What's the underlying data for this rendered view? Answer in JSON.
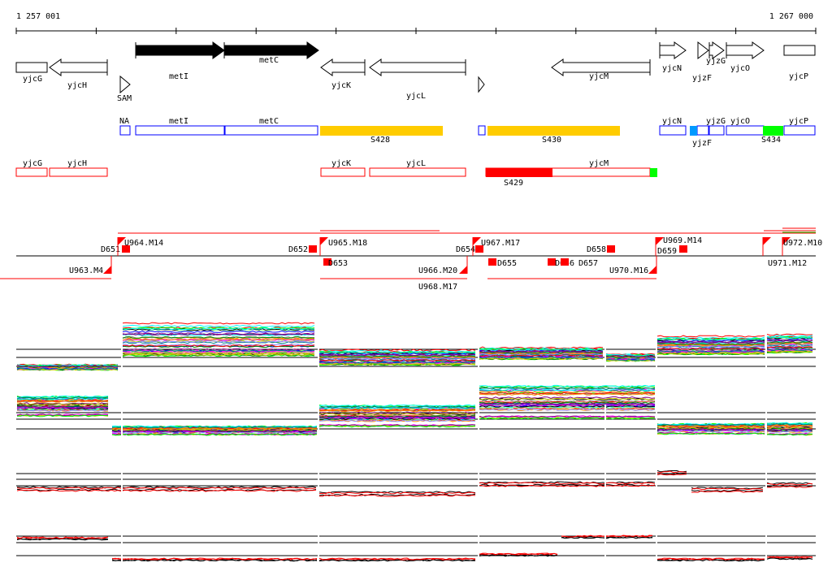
{
  "axis": {
    "start": "1 257 001",
    "end": "1 267 000"
  },
  "genes": [
    {
      "label": "yjcG",
      "strand": "box"
    },
    {
      "label": "yjcH",
      "strand": "-"
    },
    {
      "label": "metI",
      "strand": "+",
      "filled": true
    },
    {
      "label": "metC",
      "strand": "+",
      "filled": true
    },
    {
      "label": "SAM",
      "strand": "+"
    },
    {
      "label": "yjcK",
      "strand": "-"
    },
    {
      "label": "yjcL",
      "strand": "-"
    },
    {
      "label": "yjcM",
      "strand": "-"
    },
    {
      "label": "yjcN",
      "strand": "+"
    },
    {
      "label": "yjzF",
      "strand": "+"
    },
    {
      "label": "yjzG",
      "strand": "+"
    },
    {
      "label": "yjcO",
      "strand": "+"
    },
    {
      "label": "yjcP",
      "strand": "box"
    }
  ],
  "operons_plus": {
    "labels": [
      "NA",
      "metI",
      "metC",
      "S428",
      "S430",
      "yjcN",
      "yjzF",
      "yjzG",
      "yjcO",
      "yjcP",
      "S434"
    ],
    "colors": {
      "outline": "#0000ff",
      "S428": "#ffcc00",
      "S430": "#ffcc00",
      "S434": "#00ff00",
      "filled": "#0099ff"
    }
  },
  "operons_minus": {
    "labels": [
      "yjcG",
      "yjcH",
      "yjcK",
      "yjcL",
      "yjcM",
      "S429"
    ],
    "colors": {
      "outline": "#ff0000",
      "S429": "#ff0000",
      "end": "#00ff00"
    }
  },
  "segments": {
    "labels": [
      "D651",
      "U964.M14",
      "U963.M4",
      "D652",
      "U965.M18",
      "D653",
      "D654",
      "U967.M17",
      "U966.M20",
      "U968.M17",
      "D655",
      "D656",
      "D657",
      "D658",
      "U970.M16",
      "U969.M14",
      "D659",
      "U971.M12",
      "U972.M10"
    ]
  },
  "tracks": [
    "expression-plus-1",
    "expression-minus-1",
    "expression-plus-2",
    "expression-minus-2"
  ]
}
